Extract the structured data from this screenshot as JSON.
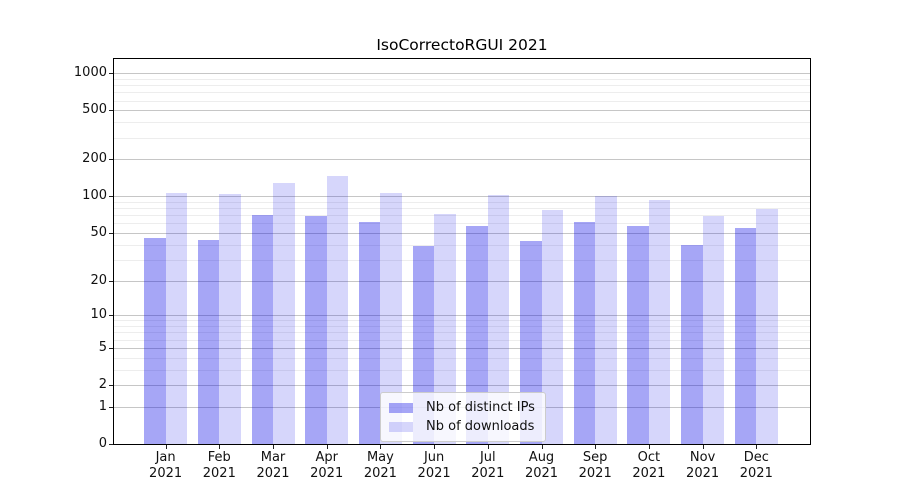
{
  "title": "IsoCorrectoRGUI 2021",
  "chart_data": {
    "type": "bar",
    "title": "IsoCorrectoRGUI 2021",
    "categories": [
      "Jan 2021",
      "Feb 2021",
      "Mar 2021",
      "Apr 2021",
      "May 2021",
      "Jun 2021",
      "Jul 2021",
      "Aug 2021",
      "Sep 2021",
      "Oct 2021",
      "Nov 2021",
      "Dec 2021"
    ],
    "series": [
      {
        "name": "Nb of distinct IPs",
        "color": "rgba(0,0,230,0.35)",
        "values": [
          45,
          44,
          70,
          69,
          61,
          39,
          57,
          43,
          61,
          57,
          40,
          55
        ]
      },
      {
        "name": "Nb of downloads",
        "color": "rgba(0,0,230,0.16)",
        "values": [
          107,
          104,
          129,
          147,
          106,
          71,
          102,
          77,
          100,
          93,
          69,
          78
        ]
      }
    ],
    "xlabel": "",
    "ylabel": "",
    "yscale": "log10(v+1)",
    "ylim": [
      0,
      1300
    ],
    "yticks": [
      0,
      1,
      2,
      5,
      10,
      20,
      50,
      100,
      200,
      500,
      1000
    ],
    "yticks_minor": [
      3,
      4,
      6,
      7,
      8,
      9,
      30,
      40,
      60,
      70,
      80,
      90,
      300,
      400,
      600,
      700,
      800,
      900
    ],
    "grid": true,
    "grid_color_major": "#c6c6c6",
    "grid_color_minor": "#ededed",
    "legend_position": "lower center"
  }
}
